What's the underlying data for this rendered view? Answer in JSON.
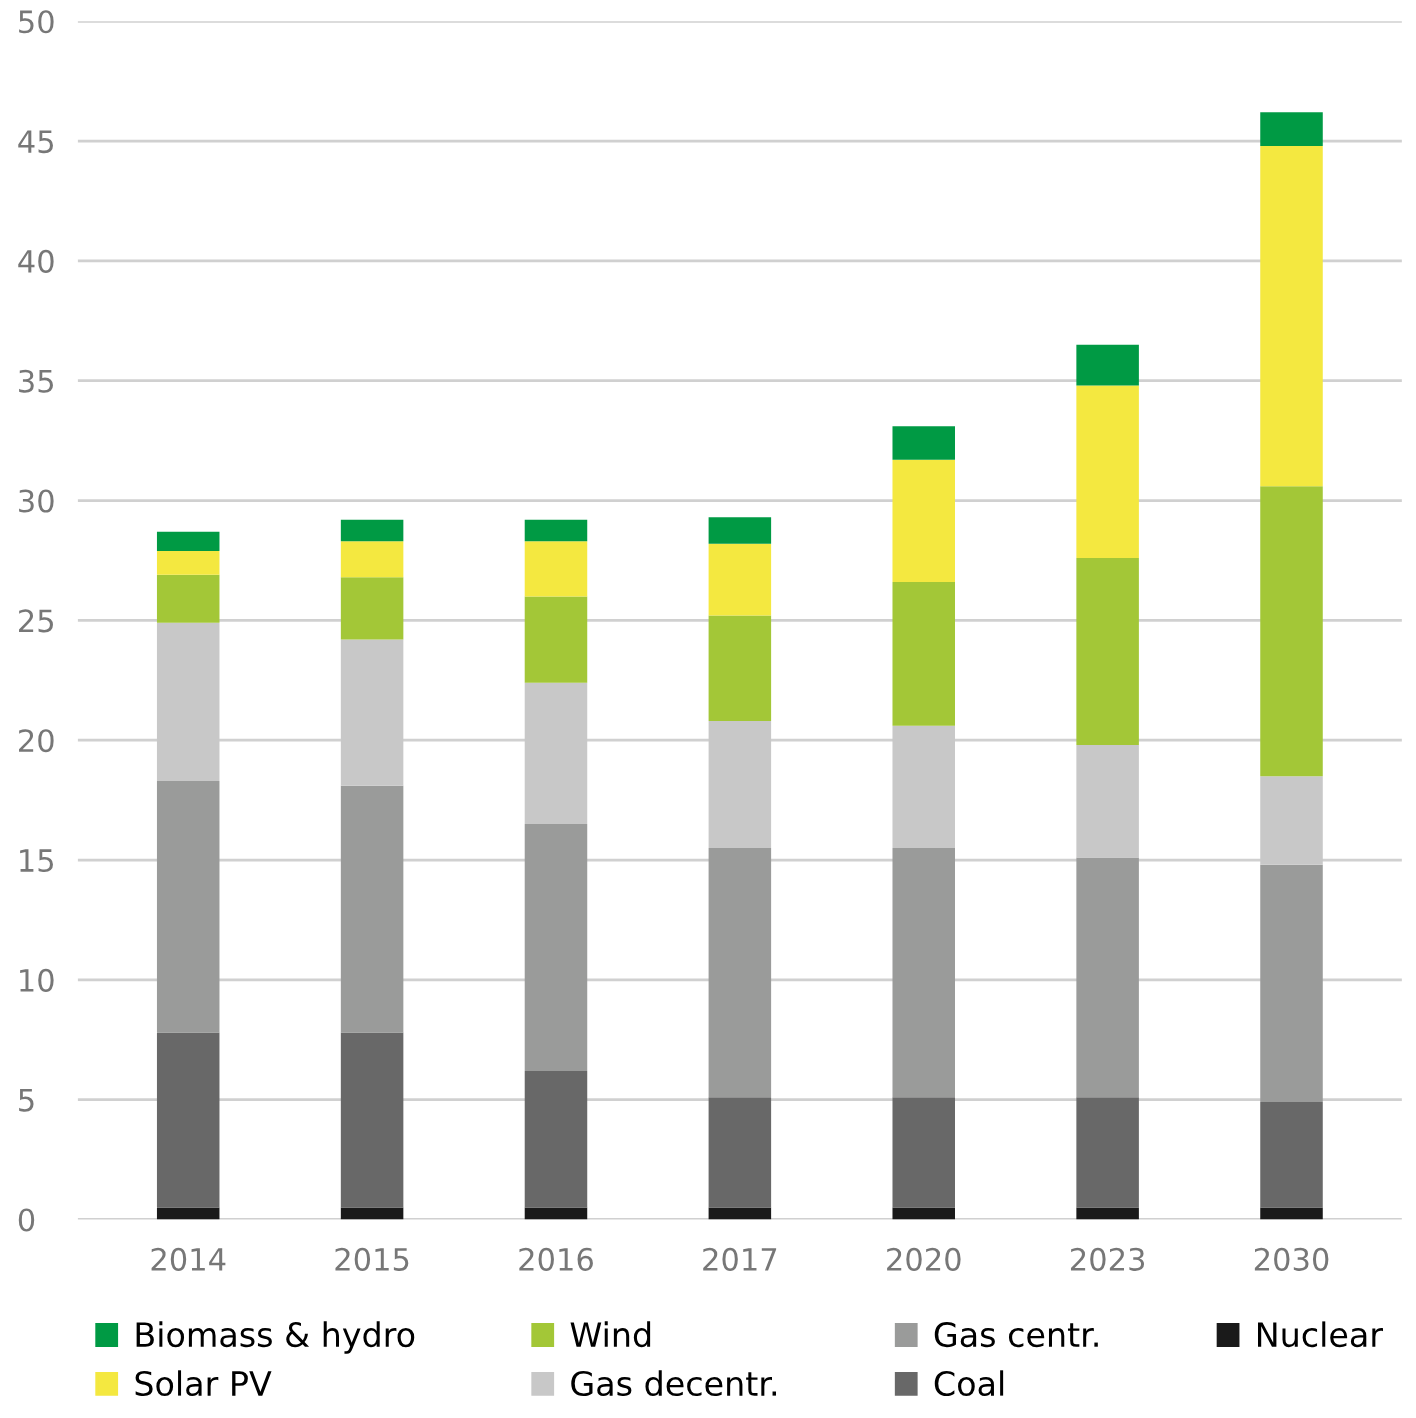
{
  "chart_data": {
    "type": "bar",
    "stacked": true,
    "categories": [
      "2014",
      "2015",
      "2016",
      "2017",
      "2020",
      "2023",
      "2030"
    ],
    "series": [
      {
        "name": "Nuclear",
        "color": "#1a1a1a",
        "values": [
          0.5,
          0.5,
          0.5,
          0.5,
          0.5,
          0.5,
          0.5
        ]
      },
      {
        "name": "Coal",
        "color": "#686868",
        "values": [
          7.3,
          7.3,
          5.7,
          4.6,
          4.6,
          4.6,
          4.4
        ]
      },
      {
        "name": "Gas centr.",
        "color": "#9a9b9a",
        "values": [
          10.5,
          10.3,
          10.3,
          10.4,
          10.4,
          10.0,
          9.9
        ]
      },
      {
        "name": "Gas decentr.",
        "color": "#c8c8c8",
        "values": [
          6.6,
          6.1,
          5.9,
          5.3,
          5.1,
          4.7,
          3.7
        ]
      },
      {
        "name": "Wind",
        "color": "#a3c737",
        "values": [
          2.0,
          2.6,
          3.6,
          4.4,
          6.0,
          7.8,
          12.1
        ]
      },
      {
        "name": "Solar PV",
        "color": "#f4e840",
        "values": [
          1.0,
          1.5,
          2.3,
          3.0,
          5.1,
          7.2,
          14.2
        ]
      },
      {
        "name": "Biomass & hydro",
        "color": "#009a44",
        "values": [
          0.8,
          0.9,
          0.9,
          1.1,
          1.4,
          1.7,
          1.4
        ]
      }
    ],
    "ylim": [
      0,
      50
    ],
    "yticks": [
      0,
      5,
      10,
      15,
      20,
      25,
      30,
      35,
      40,
      45,
      50
    ],
    "grid": "y",
    "legend": "bottom"
  }
}
